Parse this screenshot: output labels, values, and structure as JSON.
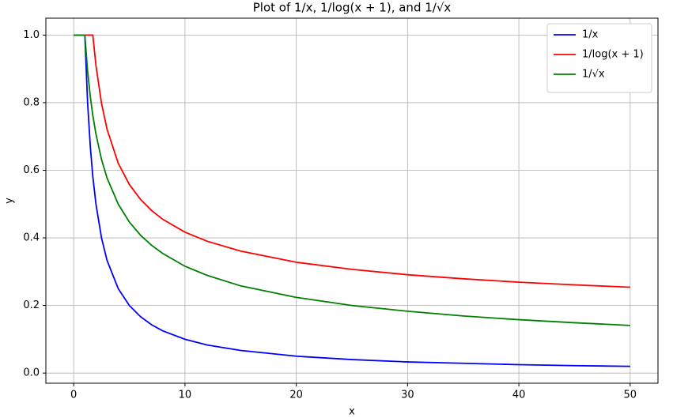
{
  "chart_data": {
    "type": "line",
    "title": "Plot of 1/x, 1/log(x + 1), and 1/√x",
    "x_label": "x",
    "y_label": "y",
    "x": [
      0,
      0.5,
      1,
      1.25,
      1.5,
      1.72,
      2,
      2.5,
      3,
      4,
      5,
      6,
      7,
      8,
      10,
      12,
      15,
      20,
      25,
      30,
      35,
      40,
      45,
      50
    ],
    "series": [
      {
        "name": "1/x",
        "color": "#0000ff",
        "values": [
          1,
          1,
          1,
          0.8,
          0.667,
          0.581,
          0.5,
          0.4,
          0.333,
          0.25,
          0.2,
          0.167,
          0.143,
          0.125,
          0.1,
          0.083,
          0.067,
          0.05,
          0.04,
          0.033,
          0.029,
          0.025,
          0.022,
          0.02
        ]
      },
      {
        "name": "1/log(x + 1)",
        "color": "#ff0000",
        "values": [
          1,
          1,
          1,
          1,
          1,
          1,
          0.91,
          0.798,
          0.721,
          0.621,
          0.558,
          0.514,
          0.481,
          0.455,
          0.417,
          0.39,
          0.361,
          0.328,
          0.307,
          0.291,
          0.279,
          0.269,
          0.261,
          0.254
        ]
      },
      {
        "name": "1/√x",
        "color": "#008000",
        "values": [
          1,
          1,
          1,
          0.894,
          0.816,
          0.762,
          0.707,
          0.632,
          0.577,
          0.5,
          0.447,
          0.408,
          0.378,
          0.354,
          0.316,
          0.289,
          0.258,
          0.224,
          0.2,
          0.183,
          0.169,
          0.158,
          0.149,
          0.141
        ]
      }
    ],
    "xlim": [
      -2.5,
      52.5
    ],
    "xticks": [
      0,
      10,
      20,
      30,
      40,
      50
    ],
    "ylim": [
      -0.03,
      1.05
    ],
    "yticks": [
      {
        "value": 0,
        "label": "0.0"
      },
      {
        "value": 0.2,
        "label": "0.2"
      },
      {
        "value": 0.4,
        "label": "0.4"
      },
      {
        "value": 0.6,
        "label": "0.6"
      },
      {
        "value": 0.8,
        "label": "0.8"
      },
      {
        "value": 1,
        "label": "1.0"
      }
    ],
    "grid": true,
    "legend": "upper right"
  }
}
